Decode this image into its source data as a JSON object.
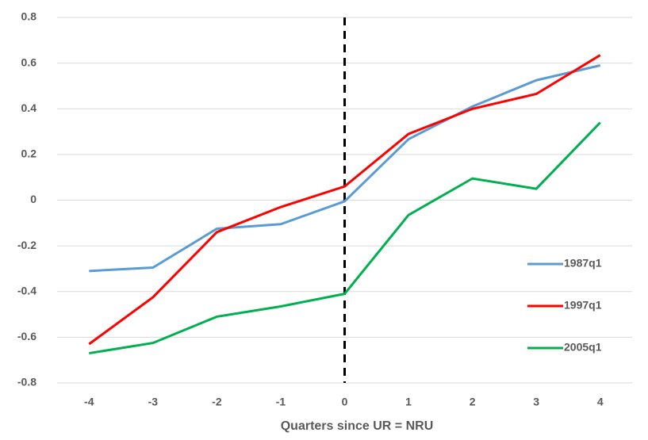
{
  "chart_data": {
    "type": "line",
    "x_label": "Quarters since UR = NRU",
    "x": [
      -4,
      -3,
      -2,
      -1,
      0,
      1,
      2,
      3,
      4
    ],
    "series": [
      {
        "name": "1987q1",
        "color": "#5b9bd5",
        "values": [
          -0.31,
          -0.295,
          -0.125,
          -0.105,
          -0.005,
          0.267,
          0.41,
          0.525,
          0.59
        ]
      },
      {
        "name": "1997q1",
        "color": "#ff0000",
        "values": [
          -0.63,
          -0.425,
          -0.14,
          -0.03,
          0.06,
          0.29,
          0.4,
          0.465,
          0.635
        ]
      },
      {
        "name": "2005q1",
        "color": "#00b050",
        "values": [
          -0.67,
          -0.625,
          -0.51,
          -0.465,
          -0.41,
          -0.065,
          0.095,
          0.05,
          0.34
        ]
      }
    ],
    "xlim": [
      -4.5,
      4.5
    ],
    "xticks": [
      -4,
      -3,
      -2,
      -1,
      0,
      1,
      2,
      3,
      4
    ],
    "ylim": [
      -0.8,
      0.8
    ],
    "yticks": [
      -0.8,
      -0.6,
      -0.4,
      -0.2,
      0,
      0.2,
      0.4,
      0.6,
      0.8
    ],
    "grid": true,
    "vline_x": 0,
    "legend": "right"
  }
}
